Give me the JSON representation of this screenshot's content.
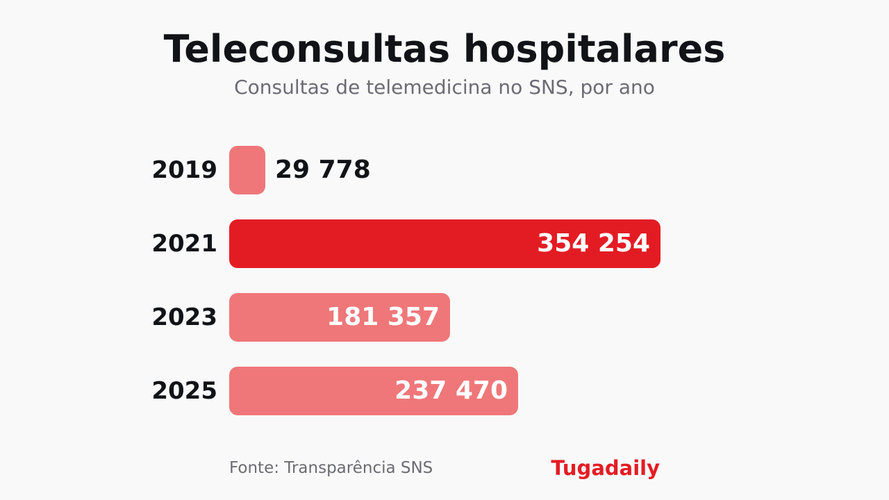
{
  "colors": {
    "highlight": "#e31c24",
    "normal": "#ef7779",
    "brand": "#e31c24"
  },
  "chart_data": {
    "type": "bar",
    "orientation": "horizontal",
    "title": "Teleconsultas hospitalares",
    "subtitle": "Consultas de telemedicina no SNS, por ano",
    "categories": [
      "2019",
      "2021",
      "2023",
      "2025"
    ],
    "values": [
      29778,
      354254,
      181357,
      237470
    ],
    "value_labels": [
      "29 778",
      "354 254",
      "181 357",
      "237 470"
    ],
    "highlighted": "2021",
    "grid": false,
    "legend": "none"
  },
  "footer": {
    "source": "Fonte: Transparência SNS",
    "brand": "Tugadaily"
  }
}
